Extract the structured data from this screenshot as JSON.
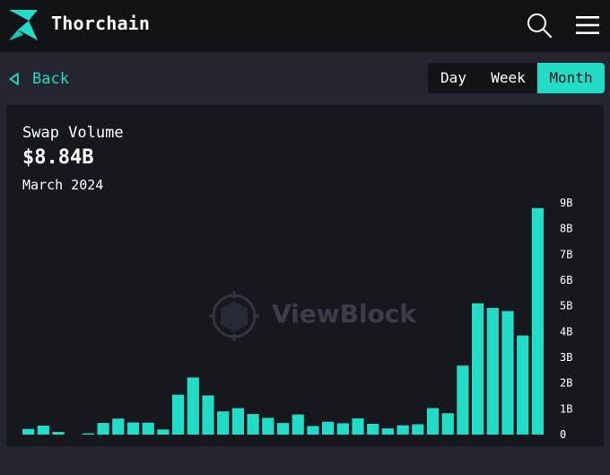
{
  "header": {
    "brand": "Thorchain",
    "logo_icon": "thorchain-bolt-logo",
    "search_icon": "search-icon",
    "menu_icon": "hamburger-menu-icon",
    "accent": "#23dcc8"
  },
  "nav": {
    "back_label": "Back",
    "ranges": [
      {
        "label": "Day",
        "active": false
      },
      {
        "label": "Week",
        "active": false
      },
      {
        "label": "Month",
        "active": true
      }
    ]
  },
  "metric": {
    "label": "Swap Volume",
    "value": "$8.84B",
    "period": "March 2024"
  },
  "watermark": "ViewBlock",
  "chart_data": {
    "type": "bar",
    "title": "",
    "xlabel": "",
    "ylabel": "",
    "ylim": [
      0,
      9
    ],
    "y_unit": "B",
    "yticks": [
      "9B",
      "8B",
      "7B",
      "6B",
      "5B",
      "4B",
      "3B",
      "2B",
      "1B",
      "0"
    ],
    "grid": false,
    "bar_color": "#23dcc8",
    "values": [
      0.22,
      0.35,
      0.1,
      0,
      0.05,
      0.45,
      0.62,
      0.47,
      0.46,
      0.2,
      1.55,
      2.22,
      1.52,
      0.9,
      1.03,
      0.8,
      0.65,
      0.45,
      0.78,
      0.33,
      0.5,
      0.44,
      0.63,
      0.42,
      0.24,
      0.36,
      0.4,
      1.03,
      0.83,
      2.68,
      5.1,
      4.92,
      4.8,
      3.85,
      8.8
    ]
  }
}
